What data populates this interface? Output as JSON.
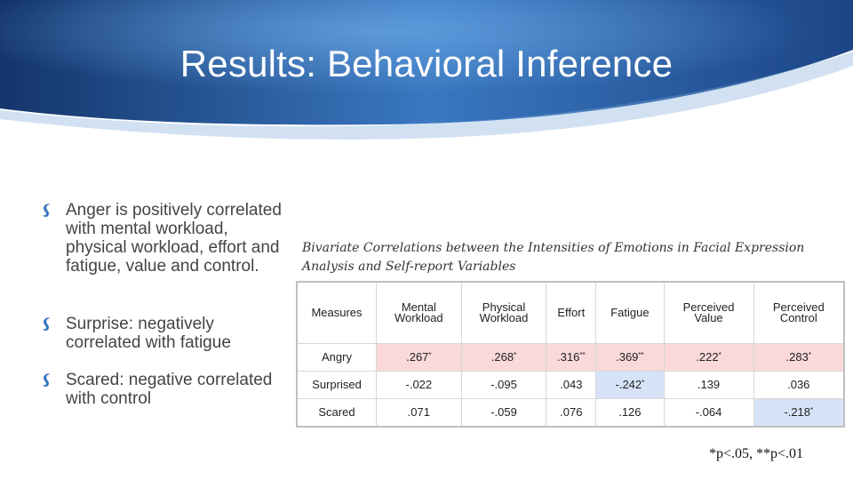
{
  "slide": {
    "title": "Results: Behavioral Inference",
    "colors": {
      "header_dark": "#14356b",
      "header_light": "#3a78c0",
      "pink_cell": "#f9d9da",
      "blue_cell": "#d6e3f7"
    }
  },
  "bullets": [
    {
      "text": "Anger is positively correlated with mental workload, physical workload, effort and fatigue, value and control.",
      "icon": "swan-bullet-icon"
    },
    {
      "text": "Surprise: negatively correlated with fatigue",
      "icon": "swan-bullet-icon"
    },
    {
      "text": "Scared: negative correlated with control",
      "icon": "swan-bullet-icon"
    }
  ],
  "table": {
    "caption": "Bivariate Correlations between the Intensities of Emotions in Facial Expression Analysis and Self-report Variables",
    "headers": [
      {
        "line1": "Measures",
        "line2": ""
      },
      {
        "line1": "Mental",
        "line2": "Workload"
      },
      {
        "line1": "Physical",
        "line2": "Workload"
      },
      {
        "line1": "Effort",
        "line2": ""
      },
      {
        "line1": "Fatigue",
        "line2": ""
      },
      {
        "line1": "Perceived",
        "line2": "Value"
      },
      {
        "line1": "Perceived",
        "line2": "Control"
      }
    ],
    "rows": [
      {
        "measure": "Angry",
        "cells": [
          {
            "value": ".267",
            "sig": "*",
            "highlight": "pink"
          },
          {
            "value": ".268",
            "sig": "*",
            "highlight": "pink"
          },
          {
            "value": ".316",
            "sig": "**",
            "highlight": "pink"
          },
          {
            "value": ".369",
            "sig": "**",
            "highlight": "pink"
          },
          {
            "value": ".222",
            "sig": "*",
            "highlight": "pink"
          },
          {
            "value": ".283",
            "sig": "*",
            "highlight": "pink"
          }
        ]
      },
      {
        "measure": "Surprised",
        "cells": [
          {
            "value": "-.022",
            "sig": "",
            "highlight": ""
          },
          {
            "value": "-.095",
            "sig": "",
            "highlight": ""
          },
          {
            "value": ".043",
            "sig": "",
            "highlight": ""
          },
          {
            "value": "-.242",
            "sig": "*",
            "highlight": "blue"
          },
          {
            "value": ".139",
            "sig": "",
            "highlight": ""
          },
          {
            "value": ".036",
            "sig": "",
            "highlight": ""
          }
        ]
      },
      {
        "measure": "Scared",
        "cells": [
          {
            "value": ".071",
            "sig": "",
            "highlight": ""
          },
          {
            "value": "-.059",
            "sig": "",
            "highlight": ""
          },
          {
            "value": ".076",
            "sig": "",
            "highlight": ""
          },
          {
            "value": ".126",
            "sig": "",
            "highlight": ""
          },
          {
            "value": "-.064",
            "sig": "",
            "highlight": ""
          },
          {
            "value": "-.218",
            "sig": "*",
            "highlight": "blue"
          }
        ]
      }
    ],
    "footnote": "*p<.05, **p<.01"
  }
}
